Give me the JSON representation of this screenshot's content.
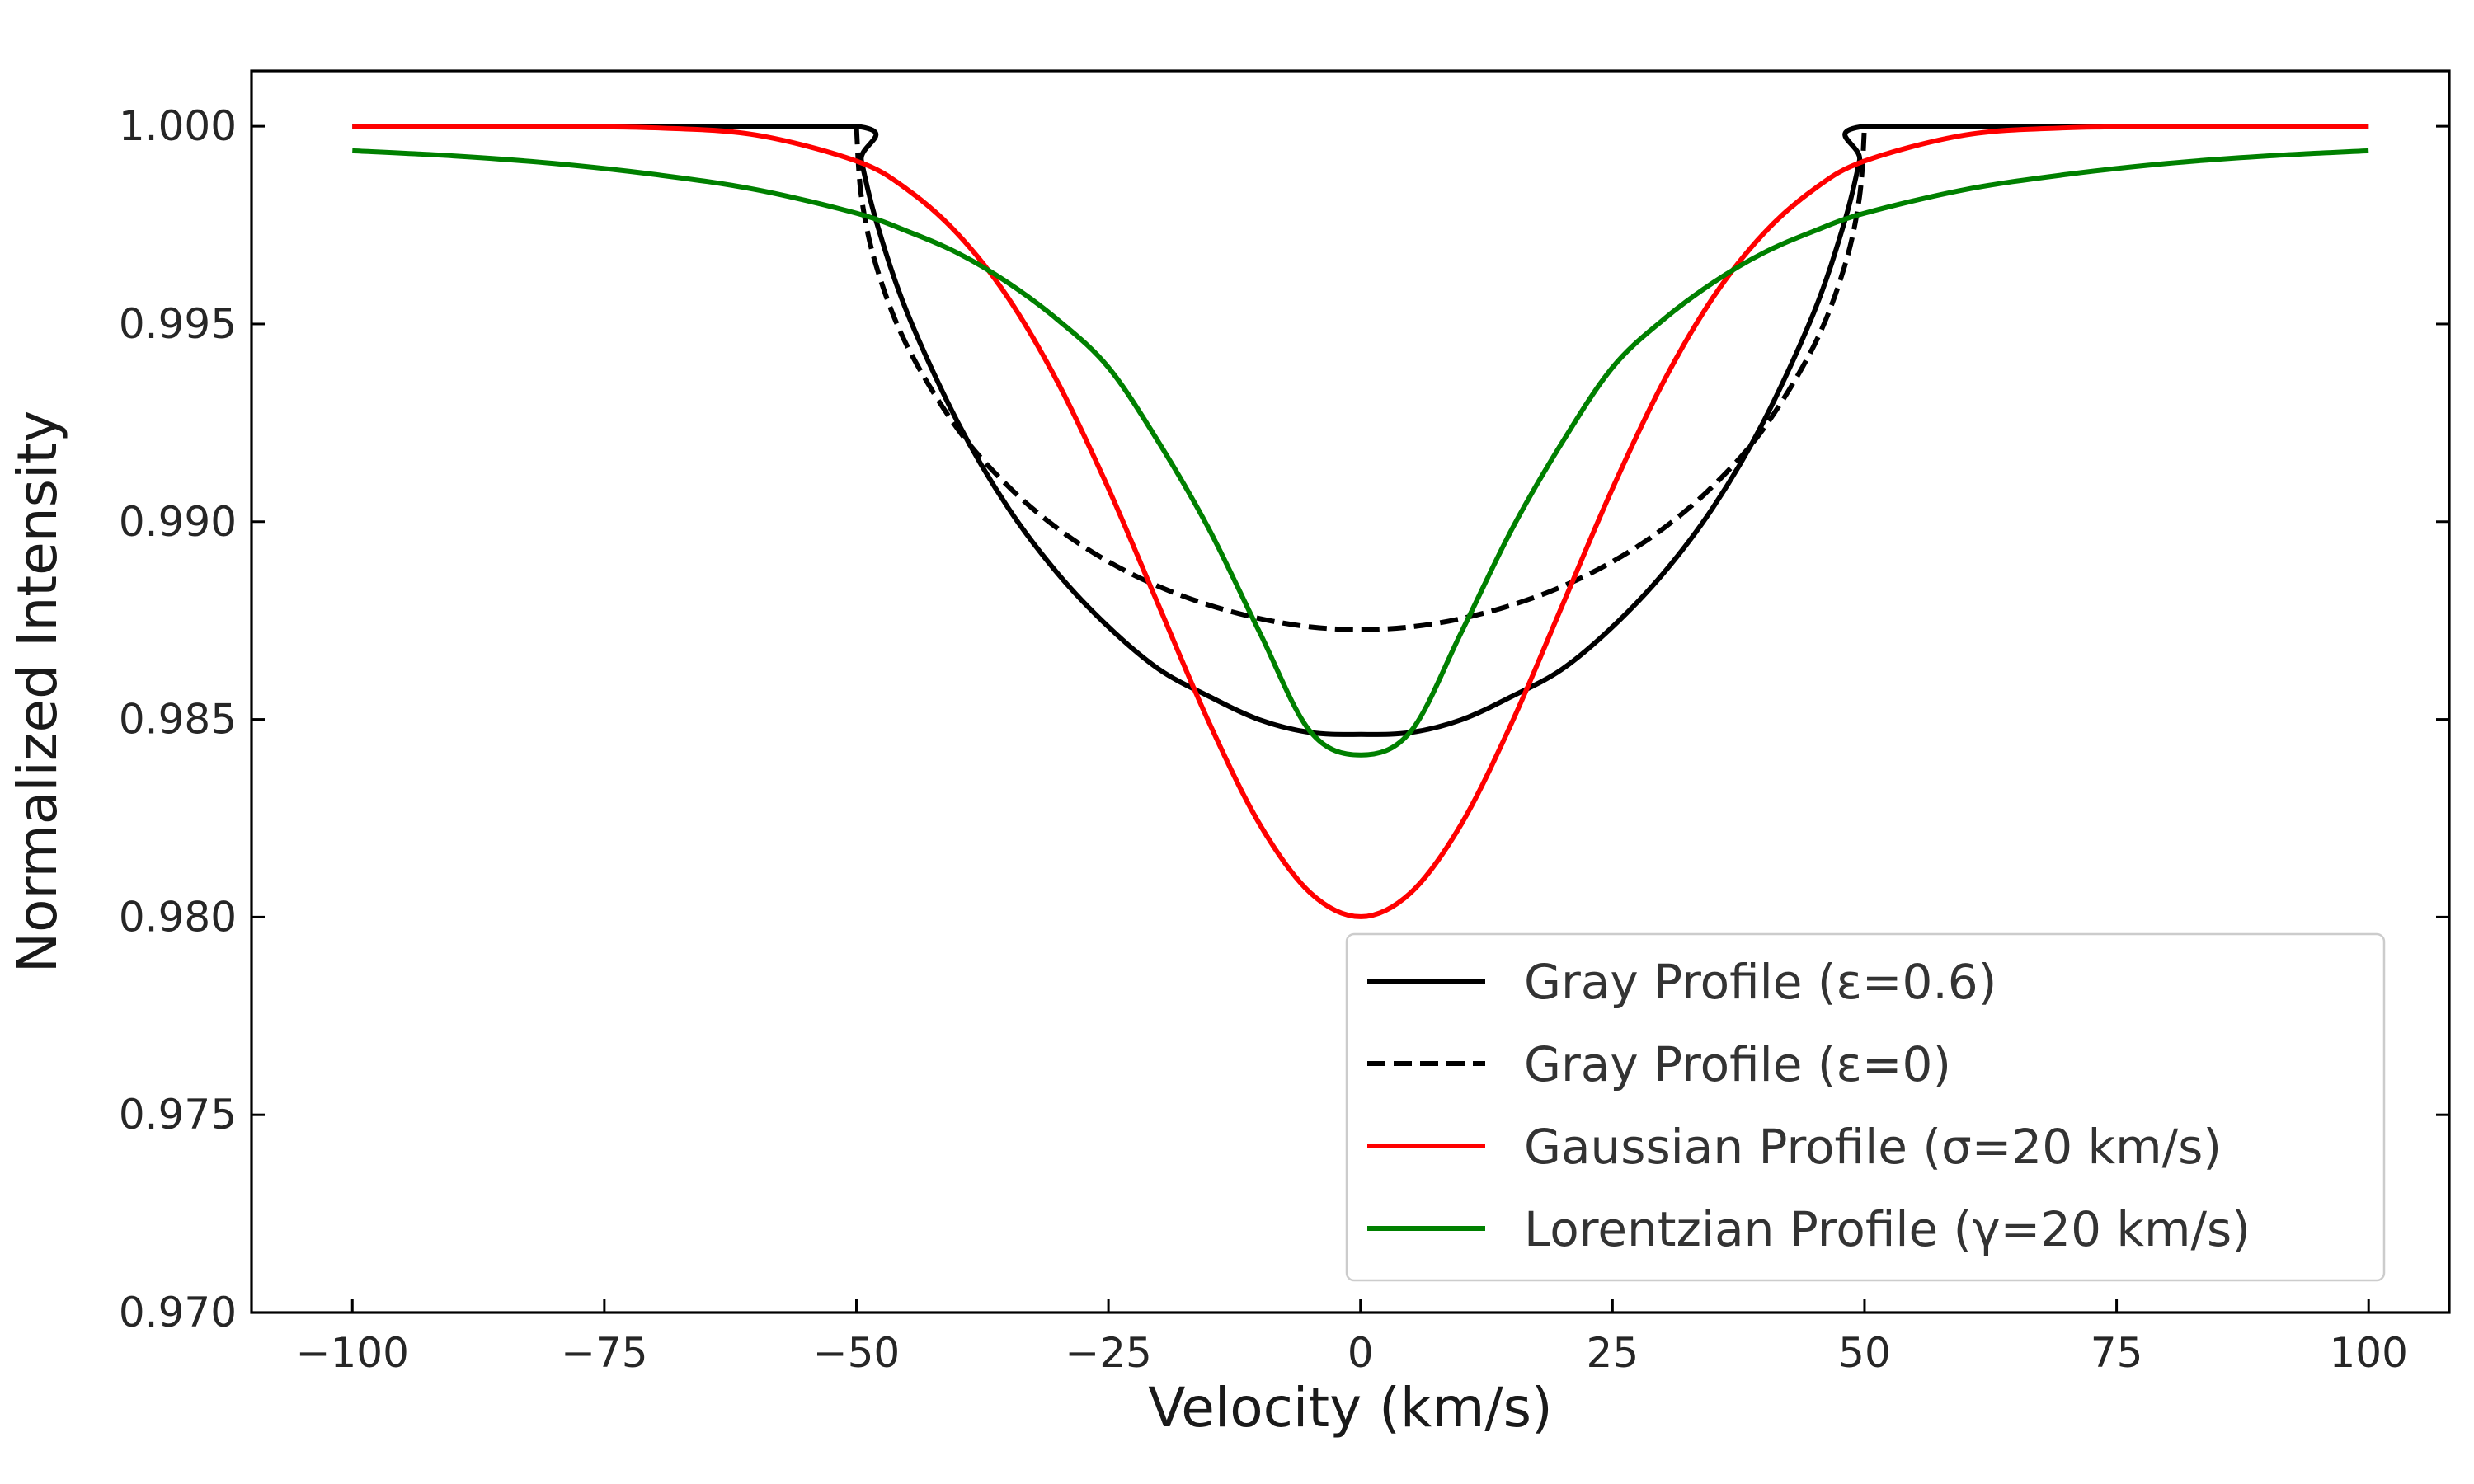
{
  "chart_data": {
    "type": "line",
    "xlabel": "Velocity (km/s)",
    "ylabel": "Normalized Intensity",
    "xlim": [
      -110,
      108
    ],
    "ylim": [
      0.97,
      1.0014
    ],
    "xticks": [
      -100,
      -75,
      -50,
      -25,
      0,
      25,
      50,
      75,
      100
    ],
    "xtick_labels": [
      "−100",
      "−75",
      "−50",
      "−25",
      "0",
      "25",
      "50",
      "75",
      "100"
    ],
    "yticks": [
      0.97,
      0.975,
      0.98,
      0.985,
      0.99,
      0.995,
      1.0
    ],
    "ytick_labels": [
      "0.970",
      "0.975",
      "0.980",
      "0.985",
      "0.990",
      "0.995",
      "1.000"
    ],
    "grid": false,
    "legend_position": "lower-right",
    "series": [
      {
        "name": "Gray Profile (ε=0.6)",
        "color": "#000000",
        "dash": "solid",
        "x": [
          -100,
          -75,
          -50,
          -49.5,
          -48,
          -45,
          -40,
          -35,
          -30,
          -25,
          -20,
          -15,
          -10,
          -5,
          0,
          5,
          10,
          15,
          20,
          25,
          30,
          35,
          40,
          45,
          48,
          49.5,
          50,
          75,
          100
        ],
        "y": [
          1.0,
          1.0,
          1.0,
          0.99913,
          0.99757,
          0.99531,
          0.99254,
          0.99037,
          0.98868,
          0.98734,
          0.98627,
          0.98558,
          0.98499,
          0.98467,
          0.98462,
          0.98467,
          0.98499,
          0.98558,
          0.98627,
          0.98734,
          0.98868,
          0.99037,
          0.99254,
          0.99531,
          0.99757,
          0.99913,
          1.0,
          1.0,
          1.0
        ]
      },
      {
        "name": "Gray Profile (ε=0)",
        "color": "#000000",
        "dash": "dashed",
        "x": [
          -50,
          -49.5,
          -48,
          -45,
          -40,
          -35,
          -30,
          -25,
          -20,
          -15,
          -10,
          -5,
          0,
          5,
          10,
          15,
          20,
          25,
          30,
          35,
          40,
          45,
          48,
          49.5,
          50
        ],
        "y": [
          1.0,
          0.99821,
          0.99644,
          0.99446,
          0.99236,
          0.99091,
          0.98982,
          0.98899,
          0.98836,
          0.98789,
          0.98755,
          0.98734,
          0.98727,
          0.98734,
          0.98755,
          0.98789,
          0.98836,
          0.98899,
          0.98982,
          0.99091,
          0.99236,
          0.99446,
          0.99644,
          0.99821,
          1.0
        ]
      },
      {
        "name": "Gaussian Profile (σ=20 km/s)",
        "color": "#ff0000",
        "dash": "solid",
        "x": [
          -100,
          -90,
          -80,
          -70,
          -60,
          -50,
          -45,
          -40,
          -35,
          -30,
          -25,
          -20,
          -15,
          -10,
          -5,
          0,
          5,
          10,
          15,
          20,
          25,
          30,
          35,
          40,
          45,
          50,
          60,
          70,
          80,
          90,
          100
        ],
        "y": [
          1.0,
          1.0,
          0.99999,
          0.99996,
          0.99978,
          0.99912,
          0.99841,
          0.99729,
          0.99568,
          0.99351,
          0.99084,
          0.98787,
          0.98491,
          0.98235,
          0.98062,
          0.98001,
          0.98062,
          0.98235,
          0.98491,
          0.98787,
          0.99084,
          0.99351,
          0.99568,
          0.99729,
          0.99841,
          0.99912,
          0.99978,
          0.99996,
          0.99999,
          1.0,
          1.0
        ]
      },
      {
        "name": "Lorentzian Profile (γ=20 km/s)",
        "color": "#008000",
        "dash": "solid",
        "x": [
          -100,
          -90,
          -80,
          -70,
          -60,
          -50,
          -45,
          -40,
          -35,
          -30,
          -25,
          -20,
          -15,
          -10,
          -5,
          0,
          5,
          10,
          15,
          20,
          25,
          30,
          35,
          40,
          45,
          50,
          60,
          70,
          80,
          90,
          100
        ],
        "y": [
          0.99938,
          0.99925,
          0.99906,
          0.99878,
          0.9984,
          0.9978,
          0.99735,
          0.9968,
          0.99605,
          0.9951,
          0.9939,
          0.992,
          0.9898,
          0.9872,
          0.9847,
          0.9841,
          0.9847,
          0.9872,
          0.9898,
          0.992,
          0.9939,
          0.9951,
          0.99605,
          0.9968,
          0.99735,
          0.9978,
          0.9984,
          0.99878,
          0.99906,
          0.99925,
          0.99938
        ]
      }
    ]
  }
}
